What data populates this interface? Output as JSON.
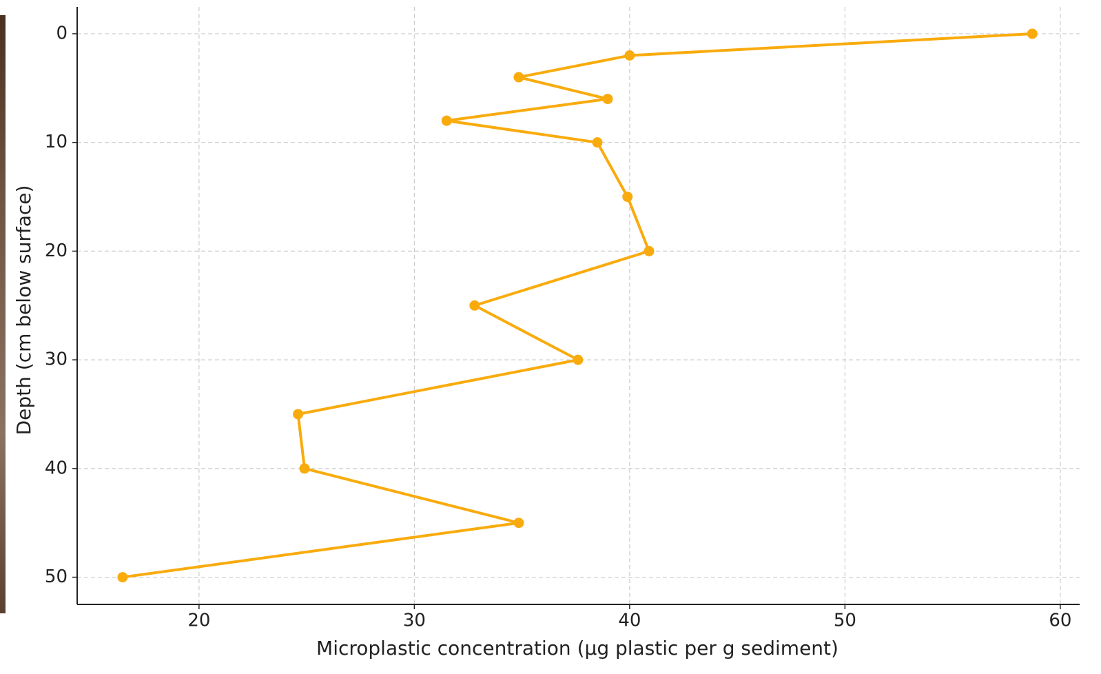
{
  "chart_data": {
    "type": "line",
    "xlabel": "Microplastic concentration (µg plastic per g sediment)",
    "ylabel": "Depth (cm below surface)",
    "series": [
      {
        "color": "#f9ab0e",
        "x": [
          58.7,
          40.0,
          34.85,
          38.98,
          31.5,
          38.5,
          39.9,
          40.9,
          32.8,
          37.6,
          24.6,
          24.9,
          34.85,
          16.45
        ],
        "values": [
          0,
          2,
          4,
          6,
          8,
          10,
          15,
          20,
          25,
          30,
          35,
          40,
          45,
          50
        ]
      }
    ],
    "xlim": [
      14.34,
      60.9
    ],
    "xticks": [
      20,
      30,
      40,
      50,
      60
    ],
    "ylim": [
      -2.47,
      52.5
    ],
    "yticks": [
      0,
      10,
      20,
      30,
      40,
      50
    ],
    "y_inverted": true,
    "grid": true
  }
}
